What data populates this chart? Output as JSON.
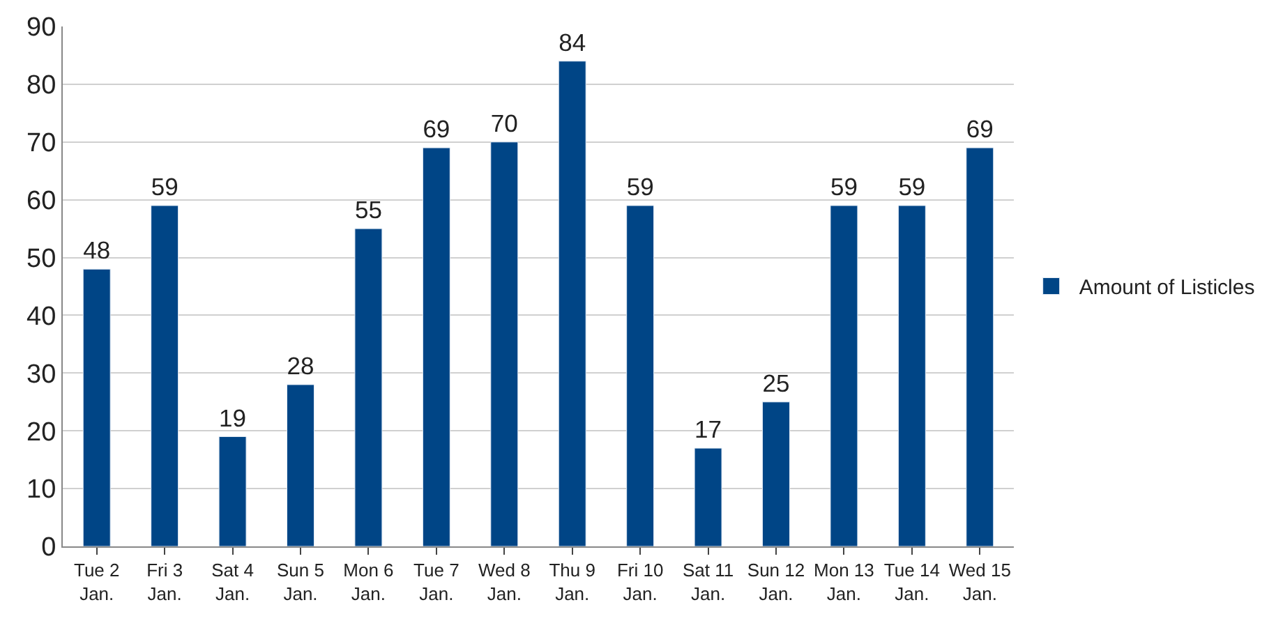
{
  "chart_data": {
    "type": "bar",
    "categories": [
      "Tue 2\nJan.",
      "Fri 3\nJan.",
      "Sat 4\nJan.",
      "Sun 5\nJan.",
      "Mon 6\nJan.",
      "Tue 7\nJan.",
      "Wed 8\nJan.",
      "Thu 9\nJan.",
      "Fri 10\nJan.",
      "Sat 11\nJan.",
      "Sun 12\nJan.",
      "Mon 13\nJan.",
      "Tue 14\nJan.",
      "Wed 15\nJan."
    ],
    "series": [
      {
        "name": "Amount of Listicles",
        "color": "#004586",
        "values": [
          48,
          59,
          19,
          28,
          55,
          69,
          70,
          84,
          59,
          17,
          25,
          59,
          59,
          69
        ]
      }
    ],
    "ylim": [
      0,
      90
    ],
    "yticks": [
      0,
      10,
      20,
      30,
      40,
      50,
      60,
      70,
      80,
      90
    ],
    "grid": "y",
    "legend": "right",
    "data_labels": true
  }
}
